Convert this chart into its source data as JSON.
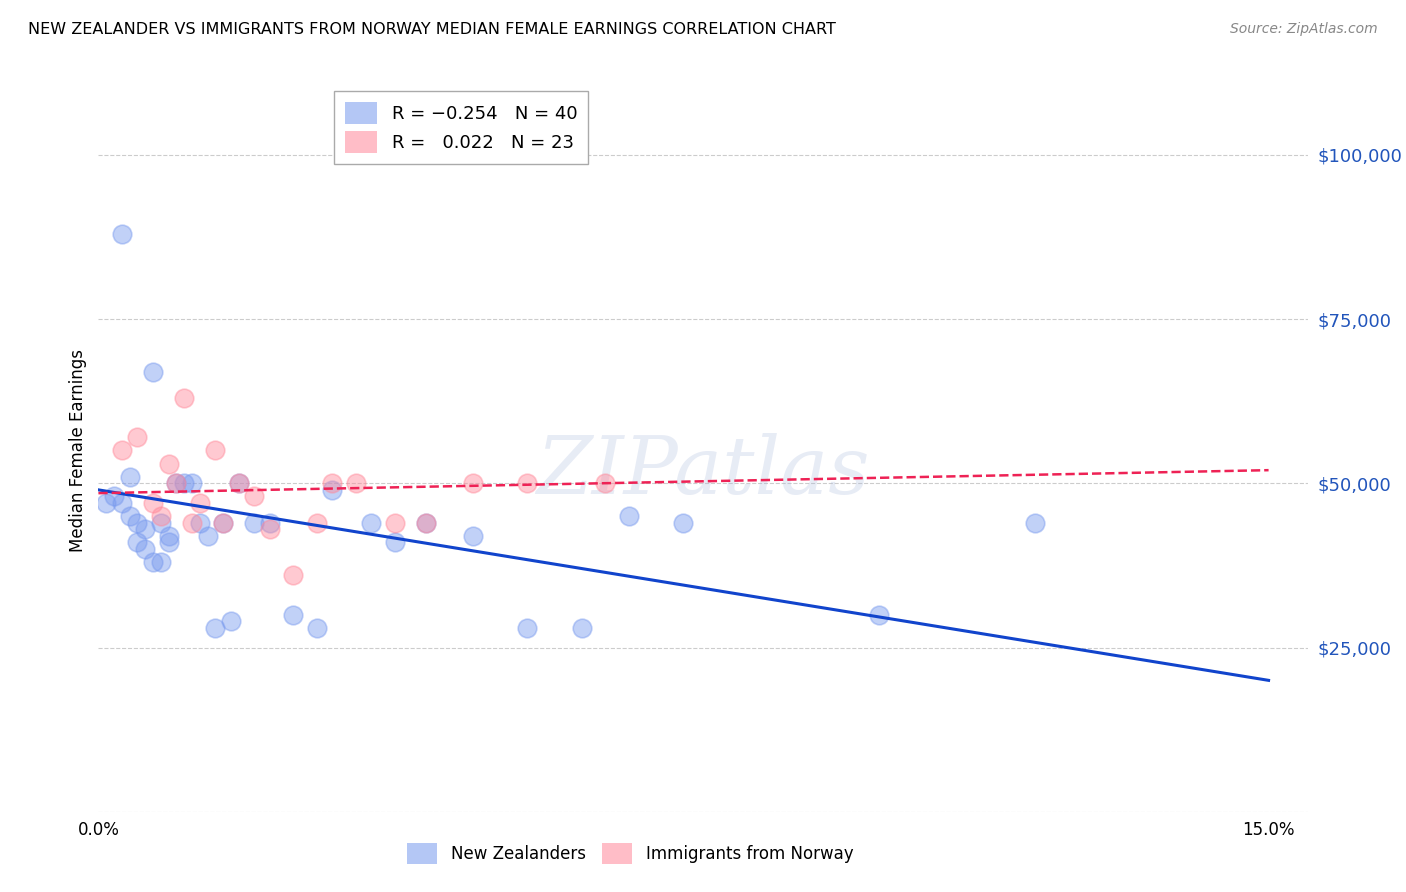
{
  "title": "NEW ZEALANDER VS IMMIGRANTS FROM NORWAY MEDIAN FEMALE EARNINGS CORRELATION CHART",
  "source": "Source: ZipAtlas.com",
  "ylabel": "Median Female Earnings",
  "xlim": [
    0.0,
    0.155
  ],
  "ylim": [
    0,
    110000
  ],
  "yticks": [
    0,
    25000,
    50000,
    75000,
    100000
  ],
  "ytick_labels": [
    "",
    "$25,000",
    "$50,000",
    "$75,000",
    "$100,000"
  ],
  "background_color": "#ffffff",
  "grid_color": "#cccccc",
  "color_blue": "#7799ee",
  "color_pink": "#ff8899",
  "color_blue_line": "#1144cc",
  "color_pink_line": "#ee2255",
  "watermark_color": "#aabbdd",
  "nz_x": [
    0.001,
    0.002,
    0.003,
    0.003,
    0.004,
    0.004,
    0.005,
    0.005,
    0.006,
    0.006,
    0.007,
    0.007,
    0.008,
    0.008,
    0.009,
    0.009,
    0.01,
    0.011,
    0.012,
    0.013,
    0.014,
    0.015,
    0.016,
    0.017,
    0.018,
    0.02,
    0.022,
    0.025,
    0.028,
    0.03,
    0.035,
    0.038,
    0.042,
    0.048,
    0.055,
    0.062,
    0.068,
    0.075,
    0.1,
    0.12
  ],
  "nz_y": [
    47000,
    48000,
    88000,
    47000,
    51000,
    45000,
    44000,
    41000,
    40000,
    43000,
    38000,
    67000,
    44000,
    38000,
    41000,
    42000,
    50000,
    50000,
    50000,
    44000,
    42000,
    28000,
    44000,
    29000,
    50000,
    44000,
    44000,
    30000,
    28000,
    49000,
    44000,
    41000,
    44000,
    42000,
    28000,
    28000,
    45000,
    44000,
    30000,
    44000
  ],
  "no_x": [
    0.003,
    0.005,
    0.007,
    0.008,
    0.009,
    0.01,
    0.011,
    0.012,
    0.013,
    0.015,
    0.016,
    0.018,
    0.02,
    0.022,
    0.025,
    0.028,
    0.03,
    0.033,
    0.038,
    0.042,
    0.048,
    0.055,
    0.065
  ],
  "no_y": [
    55000,
    57000,
    47000,
    45000,
    53000,
    50000,
    63000,
    44000,
    47000,
    55000,
    44000,
    50000,
    48000,
    43000,
    36000,
    44000,
    50000,
    50000,
    44000,
    44000,
    50000,
    50000,
    50000
  ],
  "nz_line_x0": 0.0,
  "nz_line_y0": 49000,
  "nz_line_x1": 0.15,
  "nz_line_y1": 20000,
  "no_line_x0": 0.0,
  "no_line_y0": 48500,
  "no_line_x1": 0.15,
  "no_line_y1": 52000
}
